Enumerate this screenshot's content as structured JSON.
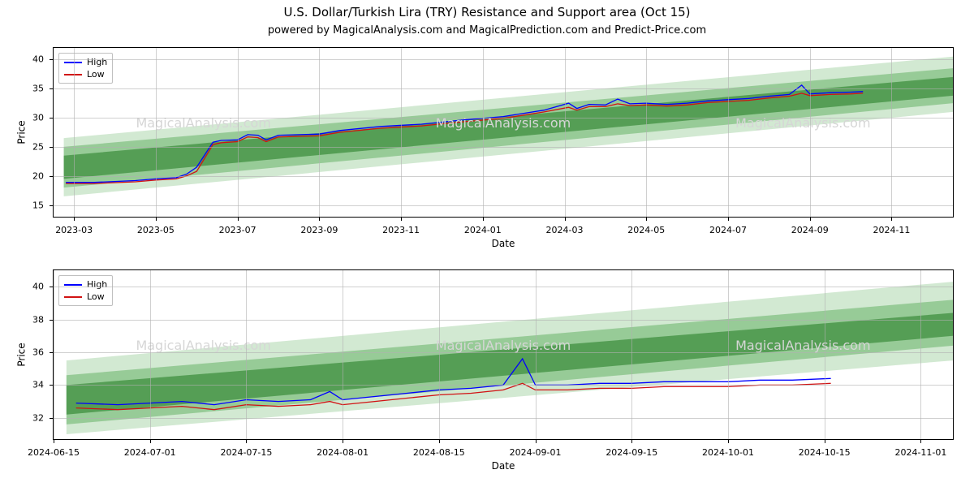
{
  "title": "U.S. Dollar/Turkish Lira (TRY) Resistance and Support area (Oct 15)",
  "subtitle": "powered by MagicalAnalysis.com and MagicalPrediction.com and Predict-Price.com",
  "watermark_text": "MagicalAnalysis.com",
  "watermark_color": "#d6d6d6",
  "band_colors": {
    "outer": "#7fbf7f",
    "mid": "#4fa64f",
    "inner": "#1f7a1f"
  },
  "line_colors": {
    "high": "#0000ff",
    "low": "#d11213"
  },
  "legend": {
    "high_label": "High",
    "low_label": "Low"
  },
  "axis_font_size": 11,
  "line_width": 1.3,
  "top_chart": {
    "type": "line",
    "ylabel": "Price",
    "xlabel": "Date",
    "ylim": [
      13,
      42
    ],
    "yticks": [
      15,
      20,
      25,
      30,
      35,
      40
    ],
    "xlim_idx": [
      0,
      44
    ],
    "xticks": [
      {
        "idx": 1,
        "label": "2023-03"
      },
      {
        "idx": 5,
        "label": "2023-05"
      },
      {
        "idx": 9,
        "label": "2023-07"
      },
      {
        "idx": 13,
        "label": "2023-09"
      },
      {
        "idx": 17,
        "label": "2023-11"
      },
      {
        "idx": 21,
        "label": "2024-01"
      },
      {
        "idx": 25,
        "label": "2024-03"
      },
      {
        "idx": 29,
        "label": "2024-05"
      },
      {
        "idx": 33,
        "label": "2024-07"
      },
      {
        "idx": 37,
        "label": "2024-09"
      },
      {
        "idx": 41,
        "label": "2024-11"
      }
    ],
    "bands": {
      "outer": {
        "x": [
          0.5,
          44
        ],
        "y_top": [
          26.5,
          40.5
        ],
        "y_bot": [
          16.5,
          31.0
        ]
      },
      "mid": {
        "x": [
          0.5,
          44
        ],
        "y_top": [
          25.0,
          38.5
        ],
        "y_bot": [
          18.0,
          32.5
        ]
      },
      "inner": {
        "x": [
          0.5,
          44
        ],
        "y_top": [
          23.5,
          37.0
        ],
        "y_bot": [
          19.5,
          33.8
        ]
      }
    },
    "series_high": [
      {
        "x": 0.6,
        "y": 18.9
      },
      {
        "x": 2,
        "y": 18.9
      },
      {
        "x": 4,
        "y": 19.2
      },
      {
        "x": 5,
        "y": 19.5
      },
      {
        "x": 6,
        "y": 19.7
      },
      {
        "x": 6.5,
        "y": 20.3
      },
      {
        "x": 7,
        "y": 21.5
      },
      {
        "x": 7.8,
        "y": 25.8
      },
      {
        "x": 8.2,
        "y": 26.1
      },
      {
        "x": 9,
        "y": 26.2
      },
      {
        "x": 9.5,
        "y": 27.1
      },
      {
        "x": 10,
        "y": 27.0
      },
      {
        "x": 10.4,
        "y": 26.2
      },
      {
        "x": 11,
        "y": 27.0
      },
      {
        "x": 12,
        "y": 27.1
      },
      {
        "x": 13,
        "y": 27.2
      },
      {
        "x": 14,
        "y": 27.8
      },
      {
        "x": 16,
        "y": 28.5
      },
      {
        "x": 18,
        "y": 28.9
      },
      {
        "x": 20,
        "y": 29.6
      },
      {
        "x": 22,
        "y": 30.2
      },
      {
        "x": 24,
        "y": 31.3
      },
      {
        "x": 25.2,
        "y": 32.5
      },
      {
        "x": 25.6,
        "y": 31.6
      },
      {
        "x": 26.2,
        "y": 32.3
      },
      {
        "x": 27,
        "y": 32.2
      },
      {
        "x": 27.6,
        "y": 33.2
      },
      {
        "x": 28.2,
        "y": 32.4
      },
      {
        "x": 29,
        "y": 32.5
      },
      {
        "x": 30,
        "y": 32.3
      },
      {
        "x": 31,
        "y": 32.5
      },
      {
        "x": 32,
        "y": 32.9
      },
      {
        "x": 33,
        "y": 33.1
      },
      {
        "x": 34,
        "y": 33.3
      },
      {
        "x": 35,
        "y": 33.7
      },
      {
        "x": 36,
        "y": 34.0
      },
      {
        "x": 36.6,
        "y": 35.6
      },
      {
        "x": 37,
        "y": 34.1
      },
      {
        "x": 38,
        "y": 34.3
      },
      {
        "x": 39,
        "y": 34.4
      },
      {
        "x": 39.6,
        "y": 34.5
      }
    ],
    "series_low": [
      {
        "x": 0.6,
        "y": 18.7
      },
      {
        "x": 2,
        "y": 18.7
      },
      {
        "x": 4,
        "y": 19.0
      },
      {
        "x": 5,
        "y": 19.3
      },
      {
        "x": 6,
        "y": 19.5
      },
      {
        "x": 6.5,
        "y": 20.0
      },
      {
        "x": 7,
        "y": 20.8
      },
      {
        "x": 7.8,
        "y": 25.4
      },
      {
        "x": 8.2,
        "y": 25.7
      },
      {
        "x": 9,
        "y": 25.9
      },
      {
        "x": 9.5,
        "y": 26.7
      },
      {
        "x": 10,
        "y": 26.6
      },
      {
        "x": 10.4,
        "y": 25.9
      },
      {
        "x": 11,
        "y": 26.7
      },
      {
        "x": 12,
        "y": 26.8
      },
      {
        "x": 13,
        "y": 26.9
      },
      {
        "x": 14,
        "y": 27.5
      },
      {
        "x": 16,
        "y": 28.2
      },
      {
        "x": 18,
        "y": 28.6
      },
      {
        "x": 20,
        "y": 29.3
      },
      {
        "x": 22,
        "y": 29.9
      },
      {
        "x": 24,
        "y": 31.0
      },
      {
        "x": 25.2,
        "y": 31.8
      },
      {
        "x": 25.6,
        "y": 31.3
      },
      {
        "x": 26.2,
        "y": 31.9
      },
      {
        "x": 27,
        "y": 31.9
      },
      {
        "x": 27.6,
        "y": 32.4
      },
      {
        "x": 28.2,
        "y": 32.1
      },
      {
        "x": 29,
        "y": 32.2
      },
      {
        "x": 30,
        "y": 32.0
      },
      {
        "x": 31,
        "y": 32.2
      },
      {
        "x": 32,
        "y": 32.6
      },
      {
        "x": 33,
        "y": 32.8
      },
      {
        "x": 34,
        "y": 33.0
      },
      {
        "x": 35,
        "y": 33.4
      },
      {
        "x": 36,
        "y": 33.7
      },
      {
        "x": 36.6,
        "y": 34.2
      },
      {
        "x": 37,
        "y": 33.8
      },
      {
        "x": 38,
        "y": 34.0
      },
      {
        "x": 39,
        "y": 34.1
      },
      {
        "x": 39.6,
        "y": 34.2
      }
    ]
  },
  "bot_chart": {
    "type": "line",
    "ylabel": "Price",
    "xlabel": "Date",
    "ylim": [
      30.7,
      41
    ],
    "yticks": [
      32,
      34,
      36,
      38,
      40
    ],
    "xlim_idx": [
      0,
      28
    ],
    "xticks": [
      {
        "idx": 0,
        "label": "2024-06-15"
      },
      {
        "idx": 3,
        "label": "2024-07-01"
      },
      {
        "idx": 6,
        "label": "2024-07-15"
      },
      {
        "idx": 9,
        "label": "2024-08-01"
      },
      {
        "idx": 12,
        "label": "2024-08-15"
      },
      {
        "idx": 15,
        "label": "2024-09-01"
      },
      {
        "idx": 18,
        "label": "2024-09-15"
      },
      {
        "idx": 21,
        "label": "2024-10-01"
      },
      {
        "idx": 24,
        "label": "2024-10-15"
      },
      {
        "idx": 27,
        "label": "2024-11-01"
      }
    ],
    "bands": {
      "outer": {
        "x": [
          0.4,
          28
        ],
        "y_top": [
          35.5,
          40.3
        ],
        "y_bot": [
          31.0,
          35.5
        ]
      },
      "mid": {
        "x": [
          0.4,
          28
        ],
        "y_top": [
          34.6,
          39.2
        ],
        "y_bot": [
          31.6,
          36.4
        ]
      },
      "inner": {
        "x": [
          0.4,
          28
        ],
        "y_top": [
          34.0,
          38.4
        ],
        "y_bot": [
          32.2,
          37.0
        ]
      }
    },
    "series_high": [
      {
        "x": 0.7,
        "y": 32.9
      },
      {
        "x": 2,
        "y": 32.8
      },
      {
        "x": 3,
        "y": 32.9
      },
      {
        "x": 4,
        "y": 33.0
      },
      {
        "x": 5,
        "y": 32.8
      },
      {
        "x": 6,
        "y": 33.1
      },
      {
        "x": 7,
        "y": 33.0
      },
      {
        "x": 8,
        "y": 33.1
      },
      {
        "x": 8.6,
        "y": 33.6
      },
      {
        "x": 9,
        "y": 33.1
      },
      {
        "x": 10,
        "y": 33.3
      },
      {
        "x": 11,
        "y": 33.5
      },
      {
        "x": 12,
        "y": 33.7
      },
      {
        "x": 13,
        "y": 33.8
      },
      {
        "x": 14,
        "y": 34.0
      },
      {
        "x": 14.6,
        "y": 35.6
      },
      {
        "x": 15,
        "y": 34.0
      },
      {
        "x": 16,
        "y": 34.0
      },
      {
        "x": 17,
        "y": 34.1
      },
      {
        "x": 18,
        "y": 34.1
      },
      {
        "x": 19,
        "y": 34.2
      },
      {
        "x": 20,
        "y": 34.2
      },
      {
        "x": 21,
        "y": 34.2
      },
      {
        "x": 22,
        "y": 34.3
      },
      {
        "x": 23,
        "y": 34.3
      },
      {
        "x": 24.2,
        "y": 34.4
      }
    ],
    "series_low": [
      {
        "x": 0.7,
        "y": 32.6
      },
      {
        "x": 2,
        "y": 32.5
      },
      {
        "x": 3,
        "y": 32.6
      },
      {
        "x": 4,
        "y": 32.7
      },
      {
        "x": 5,
        "y": 32.5
      },
      {
        "x": 6,
        "y": 32.8
      },
      {
        "x": 7,
        "y": 32.7
      },
      {
        "x": 8,
        "y": 32.8
      },
      {
        "x": 8.6,
        "y": 33.0
      },
      {
        "x": 9,
        "y": 32.8
      },
      {
        "x": 10,
        "y": 33.0
      },
      {
        "x": 11,
        "y": 33.2
      },
      {
        "x": 12,
        "y": 33.4
      },
      {
        "x": 13,
        "y": 33.5
      },
      {
        "x": 14,
        "y": 33.7
      },
      {
        "x": 14.6,
        "y": 34.1
      },
      {
        "x": 15,
        "y": 33.7
      },
      {
        "x": 16,
        "y": 33.7
      },
      {
        "x": 17,
        "y": 33.8
      },
      {
        "x": 18,
        "y": 33.8
      },
      {
        "x": 19,
        "y": 33.9
      },
      {
        "x": 20,
        "y": 33.9
      },
      {
        "x": 21,
        "y": 33.9
      },
      {
        "x": 22,
        "y": 34.0
      },
      {
        "x": 23,
        "y": 34.0
      },
      {
        "x": 24.2,
        "y": 34.1
      }
    ]
  }
}
